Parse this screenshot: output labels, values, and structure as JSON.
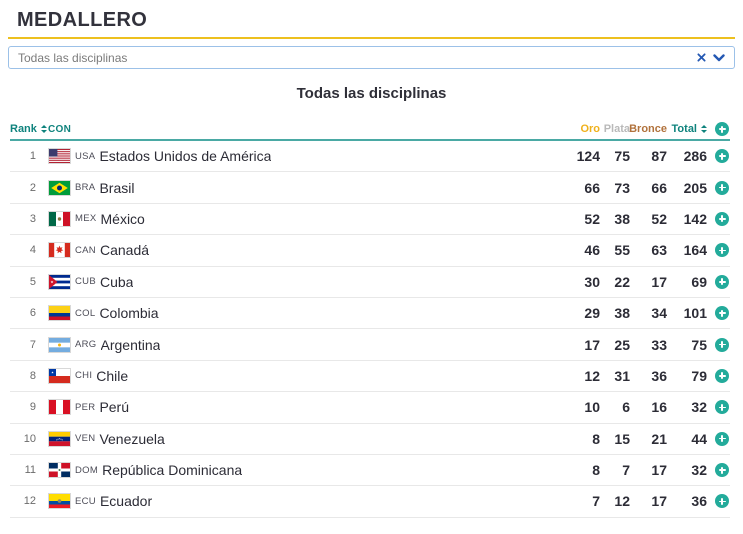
{
  "header": {
    "title": "MEDALLERO"
  },
  "filter": {
    "selected": "Todas las disciplinas"
  },
  "section": {
    "title": "Todas las disciplinas"
  },
  "table": {
    "columns": {
      "rank": "Rank",
      "con": "CON",
      "gold": "Oro",
      "silver": "Plata",
      "bronze": "Bronce",
      "total": "Total"
    },
    "rows": [
      {
        "rank": 1,
        "code": "USA",
        "flag": "flag-usa",
        "country": "Estados Unidos de América",
        "gold": 124,
        "silver": 75,
        "bronze": 87,
        "total": 286
      },
      {
        "rank": 2,
        "code": "BRA",
        "flag": "flag-bra",
        "country": "Brasil",
        "gold": 66,
        "silver": 73,
        "bronze": 66,
        "total": 205
      },
      {
        "rank": 3,
        "code": "MEX",
        "flag": "flag-mex",
        "country": "México",
        "gold": 52,
        "silver": 38,
        "bronze": 52,
        "total": 142
      },
      {
        "rank": 4,
        "code": "CAN",
        "flag": "flag-can",
        "country": "Canadá",
        "gold": 46,
        "silver": 55,
        "bronze": 63,
        "total": 164
      },
      {
        "rank": 5,
        "code": "CUB",
        "flag": "flag-cub",
        "country": "Cuba",
        "gold": 30,
        "silver": 22,
        "bronze": 17,
        "total": 69
      },
      {
        "rank": 6,
        "code": "COL",
        "flag": "flag-col",
        "country": "Colombia",
        "gold": 29,
        "silver": 38,
        "bronze": 34,
        "total": 101
      },
      {
        "rank": 7,
        "code": "ARG",
        "flag": "flag-arg",
        "country": "Argentina",
        "gold": 17,
        "silver": 25,
        "bronze": 33,
        "total": 75
      },
      {
        "rank": 8,
        "code": "CHI",
        "flag": "flag-chi",
        "country": "Chile",
        "gold": 12,
        "silver": 31,
        "bronze": 36,
        "total": 79
      },
      {
        "rank": 9,
        "code": "PER",
        "flag": "flag-per",
        "country": "Perú",
        "gold": 10,
        "silver": 6,
        "bronze": 16,
        "total": 32
      },
      {
        "rank": 10,
        "code": "VEN",
        "flag": "flag-ven",
        "country": "Venezuela",
        "gold": 8,
        "silver": 15,
        "bronze": 21,
        "total": 44
      },
      {
        "rank": 11,
        "code": "DOM",
        "flag": "flag-dom",
        "country": "República Dominicana",
        "gold": 8,
        "silver": 7,
        "bronze": 17,
        "total": 32
      },
      {
        "rank": 12,
        "code": "ECU",
        "flag": "flag-ecu",
        "country": "Ecuador",
        "gold": 7,
        "silver": 12,
        "bronze": 17,
        "total": 36
      }
    ]
  },
  "colors": {
    "accent_teal": "#0f837d",
    "plus_teal": "#23ab9b",
    "gold": "#efb11c",
    "silver": "#b9b9b9",
    "bronze": "#b1723c",
    "link_blue": "#2458b3",
    "rule_yellow": "#edc01f"
  }
}
